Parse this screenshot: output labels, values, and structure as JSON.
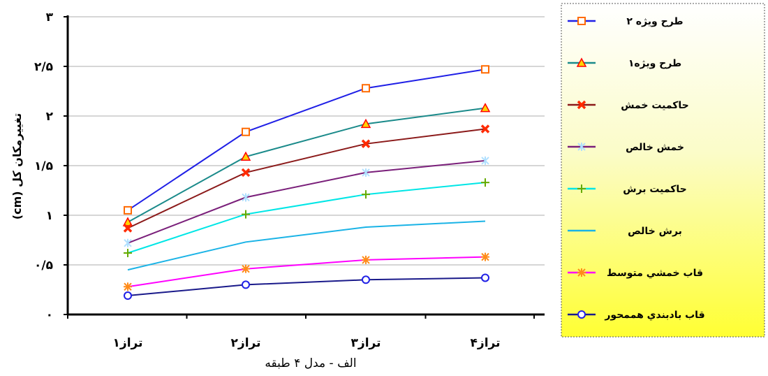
{
  "chart_data": {
    "type": "line",
    "title": "",
    "caption": "الف - مدل ۴ طبقه",
    "xlabel": "",
    "ylabel": "تغییرمکان کل (cm)",
    "categories": [
      "تراز۱",
      "تراز۲",
      "تراز۳",
      "تراز۴"
    ],
    "ylim": [
      0,
      3
    ],
    "yticks": [
      {
        "value": 0,
        "label": "۰"
      },
      {
        "value": 0.5,
        "label": "۰/۵"
      },
      {
        "value": 1,
        "label": "۱"
      },
      {
        "value": 1.5,
        "label": "۱/۵"
      },
      {
        "value": 2,
        "label": "۲"
      },
      {
        "value": 2.5,
        "label": "۲/۵"
      },
      {
        "value": 3,
        "label": "۳"
      }
    ],
    "grid": true,
    "legend_position": "right",
    "series": [
      {
        "name": "طرح ویژه ۲",
        "color": "#1f1fe6",
        "marker": "square",
        "marker_color": "#ff6a00",
        "values": [
          1.05,
          1.84,
          2.28,
          2.47
        ]
      },
      {
        "name": "طرح ویژه۱",
        "color": "#1a8a8a",
        "marker": "triangle",
        "marker_color": "#ff0000",
        "marker_fill": "#ffd400",
        "values": [
          0.93,
          1.59,
          1.92,
          2.08
        ]
      },
      {
        "name": "حاکمیت خمش",
        "color": "#8b1a1a",
        "marker": "x",
        "marker_color": "#ff2a00",
        "values": [
          0.87,
          1.43,
          1.72,
          1.87
        ]
      },
      {
        "name": "خمش خالص",
        "color": "#7a1f7a",
        "marker": "star",
        "marker_color": "#b0e0ff",
        "values": [
          0.72,
          1.18,
          1.43,
          1.55
        ]
      },
      {
        "name": "حاکمیت برش",
        "color": "#00e6e6",
        "marker": "plus",
        "marker_color": "#66aa00",
        "values": [
          0.62,
          1.01,
          1.21,
          1.33
        ]
      },
      {
        "name": "برش خالص",
        "color": "#1ab3e6",
        "marker": "dash",
        "marker_color": "#1ab3e6",
        "values": [
          0.45,
          0.73,
          0.88,
          0.94
        ]
      },
      {
        "name": "قاب خمشي متوسط",
        "color": "#ff00ff",
        "marker": "asterisk",
        "marker_color": "#ff8c1a",
        "values": [
          0.28,
          0.46,
          0.55,
          0.58
        ]
      },
      {
        "name": "قاب بادبندي هممحور",
        "color": "#1a1a8a",
        "marker": "circle",
        "marker_color": "#1f1fe6",
        "values": [
          0.19,
          0.3,
          0.35,
          0.37
        ]
      }
    ]
  }
}
